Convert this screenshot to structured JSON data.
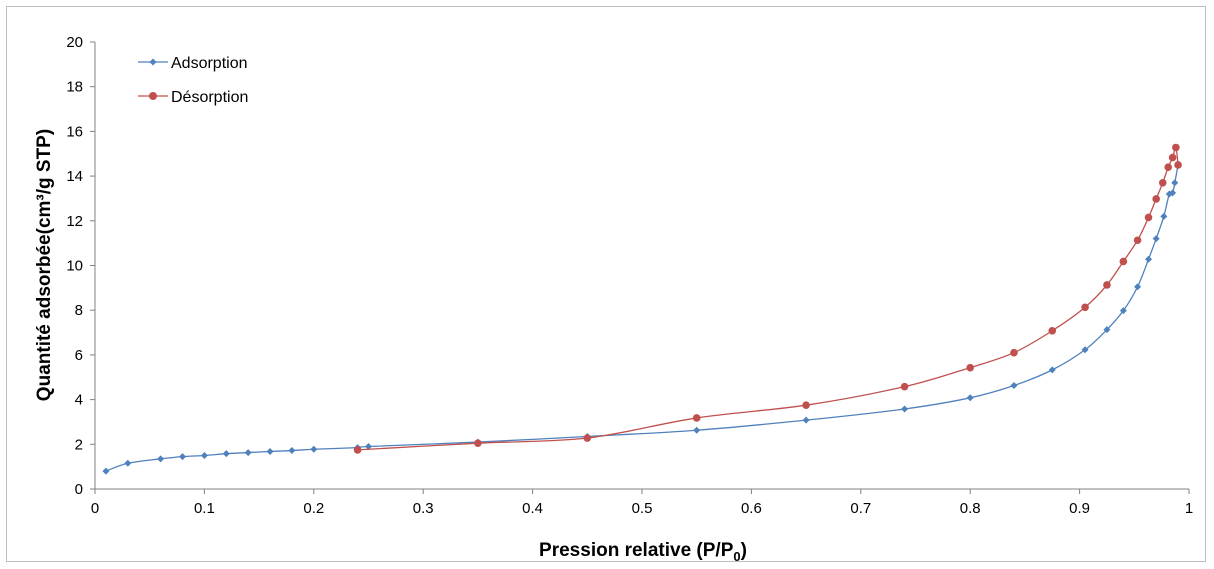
{
  "chart_data": {
    "type": "line",
    "xlabel": "Pression relative (P/P",
    "xlabel_sub": "0",
    "xlabel_end": ")",
    "ylabel": "Quantité adsorbée(cm³/g STP)",
    "xlim": [
      0,
      1
    ],
    "ylim": [
      0,
      20
    ],
    "x_ticks": [
      "0",
      "0.1",
      "0.2",
      "0.3",
      "0.4",
      "0.5",
      "0.6",
      "0.7",
      "0.8",
      "0.9",
      "1"
    ],
    "y_ticks": [
      "0",
      "2",
      "4",
      "6",
      "8",
      "10",
      "12",
      "14",
      "16",
      "18",
      "20"
    ],
    "grid": false,
    "legend_position": "top-left",
    "series": [
      {
        "name": "Adsorption",
        "color": "#4f81bd",
        "marker": "diamond",
        "points": [
          [
            0.01,
            0.8
          ],
          [
            0.03,
            1.15
          ],
          [
            0.06,
            1.35
          ],
          [
            0.08,
            1.45
          ],
          [
            0.1,
            1.5
          ],
          [
            0.12,
            1.58
          ],
          [
            0.14,
            1.63
          ],
          [
            0.16,
            1.68
          ],
          [
            0.18,
            1.72
          ],
          [
            0.2,
            1.78
          ],
          [
            0.24,
            1.85
          ],
          [
            0.25,
            1.9
          ],
          [
            0.35,
            2.1
          ],
          [
            0.45,
            2.35
          ],
          [
            0.55,
            2.63
          ],
          [
            0.65,
            3.08
          ],
          [
            0.74,
            3.58
          ],
          [
            0.8,
            4.08
          ],
          [
            0.84,
            4.63
          ],
          [
            0.875,
            5.33
          ],
          [
            0.905,
            6.23
          ],
          [
            0.925,
            7.13
          ],
          [
            0.94,
            7.98
          ],
          [
            0.953,
            9.05
          ],
          [
            0.963,
            10.28
          ],
          [
            0.97,
            11.2
          ],
          [
            0.977,
            12.2
          ],
          [
            0.982,
            13.2
          ],
          [
            0.985,
            13.25
          ],
          [
            0.987,
            13.7
          ],
          [
            0.99,
            14.5
          ]
        ]
      },
      {
        "name": "Désorption",
        "color": "#c0504d",
        "marker": "circle",
        "points": [
          [
            0.24,
            1.75
          ],
          [
            0.35,
            2.05
          ],
          [
            0.45,
            2.28
          ],
          [
            0.55,
            3.18
          ],
          [
            0.65,
            3.75
          ],
          [
            0.74,
            4.58
          ],
          [
            0.8,
            5.43
          ],
          [
            0.84,
            6.1
          ],
          [
            0.875,
            7.08
          ],
          [
            0.905,
            8.13
          ],
          [
            0.925,
            9.13
          ],
          [
            0.94,
            10.18
          ],
          [
            0.953,
            11.13
          ],
          [
            0.963,
            12.15
          ],
          [
            0.97,
            12.98
          ],
          [
            0.976,
            13.7
          ],
          [
            0.981,
            14.4
          ],
          [
            0.985,
            14.83
          ],
          [
            0.988,
            15.28
          ],
          [
            0.99,
            14.5
          ]
        ]
      }
    ]
  }
}
